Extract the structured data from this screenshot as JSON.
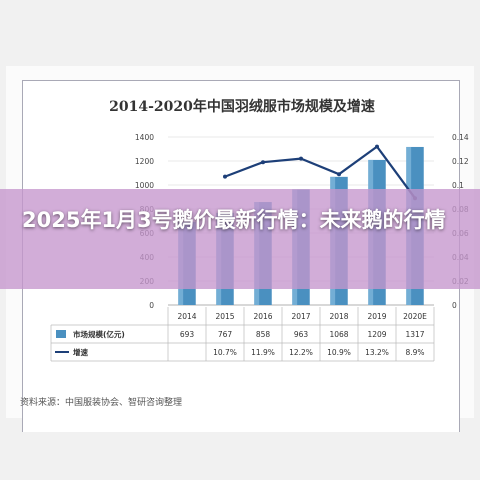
{
  "headline": "2025年1月3号鹅价最新行情：未来鹅的行情",
  "source_note": "资料来源：中国服装协会、智研咨询整理",
  "colors": {
    "bar": "#4a90c0",
    "bar_light": "#8fc3e3",
    "line": "#1d3f78",
    "grid": "#e2e2e2",
    "overlay": "#c596cd"
  },
  "chart_data": {
    "type": "bar",
    "title": "2014-2020年中国羽绒服市场规模及增速",
    "categories": [
      "2014",
      "2015",
      "2016",
      "2017",
      "2018",
      "2019",
      "2020E"
    ],
    "series": [
      {
        "name": "市场规模(亿元)",
        "type": "bar",
        "axis": "left",
        "values": [
          693,
          767,
          858,
          963,
          1068,
          1209,
          1317
        ]
      },
      {
        "name": "增速",
        "type": "line",
        "axis": "right",
        "values": [
          null,
          0.107,
          0.119,
          0.122,
          0.109,
          0.132,
          0.089
        ]
      }
    ],
    "table_rows": [
      {
        "label": "市场规模(亿元)",
        "cells": [
          "693",
          "767",
          "858",
          "963",
          "1068",
          "1209",
          "1317"
        ]
      },
      {
        "label": "增速",
        "cells": [
          "",
          "10.7%",
          "11.9%",
          "12.2%",
          "10.9%",
          "13.2%",
          "8.9%"
        ]
      }
    ],
    "y_left": {
      "ylim": [
        0,
        1400
      ],
      "ticks": [
        "0",
        "200",
        "400",
        "600",
        "800",
        "1000",
        "1200",
        "1400"
      ]
    },
    "y_right": {
      "ylim": [
        0,
        0.14
      ],
      "ticks": [
        "0",
        "0.02",
        "0.04",
        "0.06",
        "0.08",
        "0.1",
        "0.12",
        "0.14"
      ]
    },
    "grid": true,
    "legend": "table-bottom-left"
  }
}
